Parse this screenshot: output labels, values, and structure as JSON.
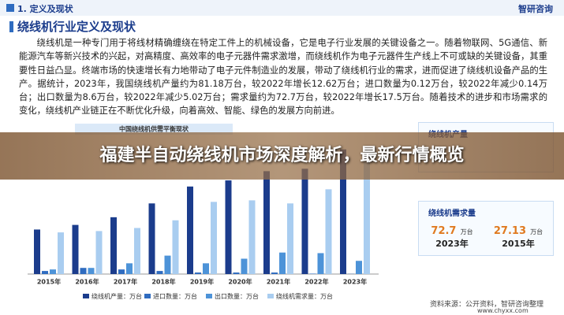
{
  "header": {
    "section": "1. 定义及现状",
    "logo": "智研咨询"
  },
  "title": "绕线机行业定义及现状",
  "paragraph": "绕线机是一种专门用于将线材精确缠绕在特定工件上的机械设备，它是电子行业发展的关键设备之一。随着物联网、5G通信、新能源汽车等新兴技术的兴起，对高精度、高效率的电子元器件需求激增，而绕线机作为电子元器件生产线上不可或缺的关键设备，其重要性日益凸显。终端市场的快速增长有力地带动了电子元件制造业的发展，带动了绕线机行业的需求，进而促进了绕线机设备产品的生产。据统计，2023年，我国绕线机产量约为81.18万台，较2022年增长12.62万台；进口数量为0.12万台，较2022年减少0.14万台；出口数量为8.6万台，较2022年减少5.02万台；需求量约为72.7万台，较2022年增长17.5万台。随着技术的进步和市场需求的变化，绕线机产业链正在不断优化升级，向着高效、智能、绿色的发展方向前进。",
  "banner": "福建半自动绕线机市场深度解析，最新行情概览",
  "chart_data": {
    "type": "bar",
    "title": "中国绕线机供需平衡现状",
    "categories": [
      "2015年",
      "2016年",
      "2017年",
      "2018年",
      "2019年",
      "2020年",
      "2021年",
      "2022年",
      "2023年"
    ],
    "series": [
      {
        "name": "绕线机产量：万台",
        "color": "#1b3c8c",
        "values": [
          29,
          32,
          37,
          46,
          57,
          61,
          67,
          68.56,
          81.18
        ]
      },
      {
        "name": "进口数量：万台",
        "color": "#2f6cc0",
        "values": [
          2,
          4,
          3,
          2,
          1,
          1,
          1,
          0.26,
          0.12
        ]
      },
      {
        "name": "出口数量：万台",
        "color": "#4d93d8",
        "values": [
          3,
          4,
          7,
          12,
          7,
          10,
          14,
          13.62,
          8.6
        ]
      },
      {
        "name": "绕线机需求量：万台",
        "color": "#a9cdf0",
        "values": [
          27.13,
          28,
          30,
          35,
          47,
          48,
          46,
          55.2,
          72.7
        ]
      }
    ]
  },
  "panels": [
    {
      "title": "绕线机产量"
    },
    {
      "title": "绕线机需求量",
      "items": [
        {
          "value": "72.7",
          "unit": "万台",
          "year": "2023年"
        },
        {
          "value": "27.13",
          "unit": "万台",
          "year": "2015年"
        }
      ]
    }
  ],
  "footer": {
    "source": "资料来源：公开资料，智研咨询整理",
    "site": "www.chyxx.com"
  }
}
